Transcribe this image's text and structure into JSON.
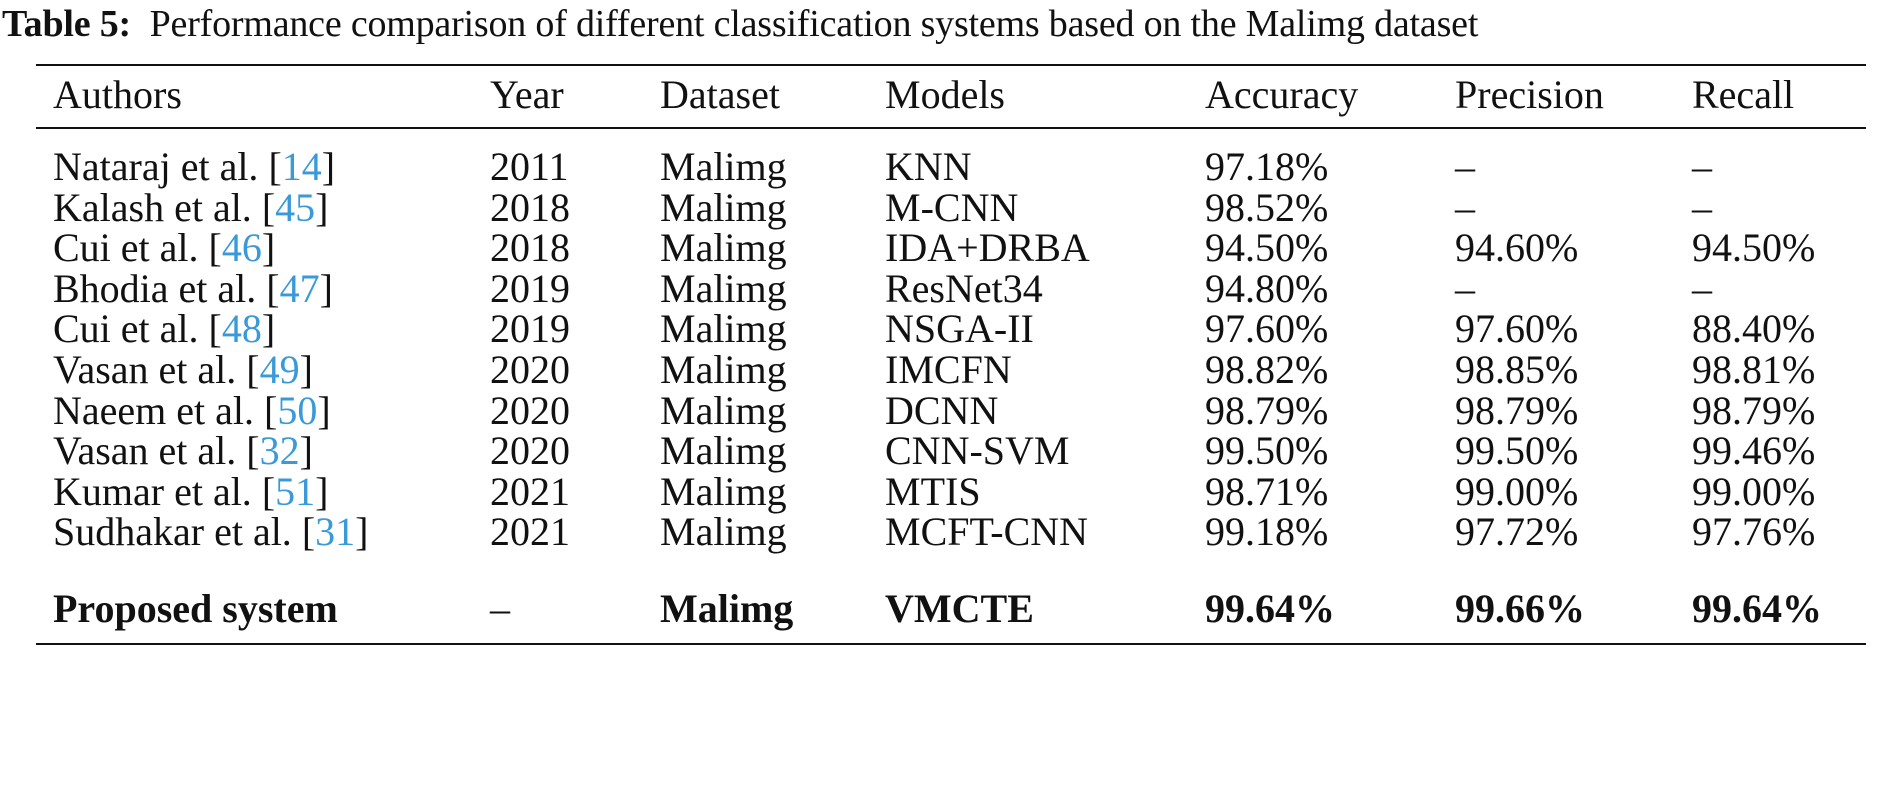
{
  "caption": {
    "label": "Table 5:",
    "text": "Performance comparison of different classification systems based on the Malimg dataset"
  },
  "link_color": "#3a9ad9",
  "headers": [
    "Authors",
    "Year",
    "Dataset",
    "Models",
    "Accuracy",
    "Precision",
    "Recall"
  ],
  "rows": [
    {
      "author": "Nataraj et al.",
      "ref": "14",
      "year": "2011",
      "dataset": "Malimg",
      "model": "KNN",
      "accuracy": "97.18%",
      "precision": "–",
      "recall": "–"
    },
    {
      "author": "Kalash et al.",
      "ref": "45",
      "year": "2018",
      "dataset": "Malimg",
      "model": "M-CNN",
      "accuracy": "98.52%",
      "precision": "–",
      "recall": "–"
    },
    {
      "author": "Cui et al.",
      "ref": "46",
      "year": "2018",
      "dataset": "Malimg",
      "model": "IDA+DRBA",
      "accuracy": "94.50%",
      "precision": "94.60%",
      "recall": "94.50%"
    },
    {
      "author": "Bhodia et al.",
      "ref": "47",
      "year": "2019",
      "dataset": "Malimg",
      "model": "ResNet34",
      "accuracy": "94.80%",
      "precision": "–",
      "recall": "–"
    },
    {
      "author": "Cui et al.",
      "ref": "48",
      "year": "2019",
      "dataset": "Malimg",
      "model": "NSGA-II",
      "accuracy": "97.60%",
      "precision": "97.60%",
      "recall": "88.40%"
    },
    {
      "author": "Vasan et al.",
      "ref": "49",
      "year": "2020",
      "dataset": "Malimg",
      "model": "IMCFN",
      "accuracy": "98.82%",
      "precision": "98.85%",
      "recall": "98.81%"
    },
    {
      "author": "Naeem et al.",
      "ref": "50",
      "year": "2020",
      "dataset": "Malimg",
      "model": "DCNN",
      "accuracy": "98.79%",
      "precision": "98.79%",
      "recall": "98.79%"
    },
    {
      "author": "Vasan et al.",
      "ref": "32",
      "year": "2020",
      "dataset": "Malimg",
      "model": "CNN-SVM",
      "accuracy": "99.50%",
      "precision": "99.50%",
      "recall": "99.46%"
    },
    {
      "author": "Kumar et al.",
      "ref": "51",
      "year": "2021",
      "dataset": "Malimg",
      "model": "MTIS",
      "accuracy": "98.71%",
      "precision": "99.00%",
      "recall": "99.00%"
    },
    {
      "author": "Sudhakar et al.",
      "ref": "31",
      "year": "2021",
      "dataset": "Malimg",
      "model": "MCFT-CNN",
      "accuracy": "99.18%",
      "precision": "97.72%",
      "recall": "97.76%"
    }
  ],
  "proposed": {
    "author": "Proposed system",
    "year": "–",
    "dataset": "Malimg",
    "model": "VMCTE",
    "accuracy": "99.64%",
    "precision": "99.66%",
    "recall": "99.64%"
  }
}
